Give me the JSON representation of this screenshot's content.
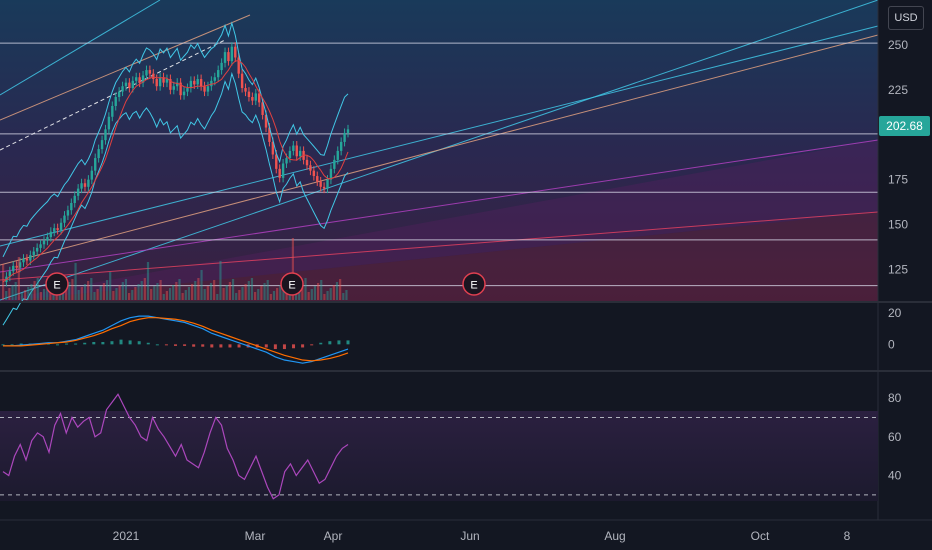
{
  "currency": "USD",
  "last_price": "202.68",
  "chart_data": [
    {
      "type": "candlestick",
      "panel": "price",
      "ylim": [
        108,
        275
      ],
      "y_ticks": [
        125,
        150,
        175,
        200,
        225,
        250
      ],
      "y_tick_labels": [
        "125",
        "150",
        "175",
        "",
        "225",
        "250"
      ],
      "series": [
        {
          "values": [
            118,
            121,
            124,
            127,
            126,
            129,
            131,
            130,
            133,
            135,
            137,
            139,
            141,
            143,
            146,
            148,
            147,
            151,
            155,
            158,
            162,
            166,
            170,
            173,
            171,
            175,
            180,
            187,
            192,
            197,
            203,
            210,
            216,
            221,
            224,
            227,
            229,
            226,
            230,
            232,
            229,
            233,
            236,
            234,
            231,
            227,
            232,
            229,
            231,
            225,
            227,
            229,
            222,
            224,
            226,
            230,
            228,
            231,
            227,
            224,
            227,
            230,
            232,
            236,
            240,
            246,
            241,
            249,
            243,
            234,
            226,
            224,
            221,
            219,
            223,
            218,
            211,
            204,
            196,
            189,
            181,
            176,
            184,
            187,
            191,
            194,
            188,
            191,
            186,
            183,
            180,
            177,
            174,
            171,
            170,
            175,
            181,
            186,
            191,
            196,
            201,
            203
          ]
        }
      ],
      "horizontal_levels": [
        251,
        200.5,
        168,
        141.5,
        116
      ],
      "earnings_markers": [
        "E",
        "E",
        "E"
      ]
    },
    {
      "type": "line",
      "panel": "macd",
      "ylim": [
        -17,
        27
      ],
      "y_ticks": [
        20,
        0
      ],
      "series": [
        {
          "values": [
            -1,
            -1,
            -0.5,
            0,
            0.5,
            1,
            1,
            2,
            3,
            5,
            7,
            9,
            12,
            15,
            17,
            18,
            18,
            17,
            16,
            15,
            14,
            12,
            10,
            7,
            5,
            3,
            1,
            -1,
            -3,
            -5,
            -8,
            -10,
            -11,
            -12,
            -11,
            -9,
            -7,
            -5,
            -3
          ]
        },
        {
          "values": [
            -1,
            -1,
            -1,
            -0.5,
            0,
            0.5,
            1,
            1.5,
            2.5,
            4,
            5.5,
            7.5,
            10,
            12,
            14.5,
            16,
            17,
            17,
            16.5,
            16,
            15,
            13.5,
            11.5,
            9,
            7,
            5,
            3,
            1,
            -1,
            -3,
            -5,
            -7,
            -8.5,
            -10,
            -10.5,
            -10,
            -9,
            -7.5,
            -5.5
          ]
        }
      ],
      "histogram": [
        0,
        0,
        0.5,
        0.5,
        0.5,
        0.5,
        0,
        0.5,
        0.5,
        1,
        1.5,
        1.5,
        2,
        3,
        2.5,
        2,
        1,
        0,
        -0.5,
        -1,
        -1,
        -1.5,
        -1.5,
        -2,
        -2,
        -2,
        -2,
        -2,
        -2,
        -2,
        -3,
        -3,
        -2.5,
        -2,
        -0.5,
        1,
        2,
        2.5,
        2.5
      ]
    },
    {
      "type": "line",
      "panel": "rsi",
      "ylim": [
        17,
        94
      ],
      "y_ticks": [
        80,
        60,
        40
      ],
      "reference_levels": [
        70,
        30
      ],
      "series": [
        {
          "values": [
            42,
            40,
            50,
            56,
            48,
            58,
            62,
            60,
            52,
            66,
            72,
            62,
            70,
            65,
            68,
            70,
            60,
            62,
            74,
            78,
            82,
            76,
            70,
            66,
            60,
            58,
            70,
            64,
            60,
            55,
            50,
            56,
            48,
            46,
            44,
            52,
            62,
            70,
            66,
            54,
            48,
            40,
            38,
            44,
            50,
            42,
            34,
            28,
            30,
            42,
            46,
            40,
            44,
            48,
            42,
            36,
            38,
            44,
            50,
            54,
            56
          ]
        }
      ]
    }
  ],
  "x_axis_labels": [
    "2021",
    "Mar",
    "Apr",
    "Jun",
    "Aug",
    "Oct",
    "8"
  ]
}
